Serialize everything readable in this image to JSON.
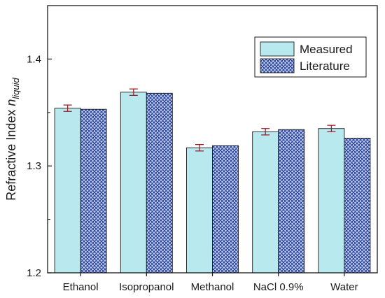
{
  "chart_data": {
    "type": "bar",
    "categories": [
      "Ethanol",
      "Isopropanol",
      "Methanol",
      "NaCl 0.9%",
      "Water"
    ],
    "series": [
      {
        "name": "Measured",
        "values": [
          1.354,
          1.369,
          1.317,
          1.332,
          1.335
        ],
        "errors": [
          0.003,
          0.003,
          0.003,
          0.003,
          0.003
        ],
        "color": "#b7e9ef"
      },
      {
        "name": "Literature",
        "values": [
          1.353,
          1.368,
          1.319,
          1.334,
          1.326
        ],
        "color": "#2b4aa8"
      }
    ],
    "ylabel": "Refractive Index",
    "ylabel_symbol": "n",
    "ylabel_subscript": "liquid",
    "ylim": [
      1.2,
      1.45
    ],
    "yticks": [
      1.2,
      1.3,
      1.4
    ],
    "yticks_labels": [
      "1.2",
      "1.3",
      "1.4"
    ],
    "legend_position": "top-right",
    "grid": false,
    "error_bar_color": "#a0202a"
  }
}
